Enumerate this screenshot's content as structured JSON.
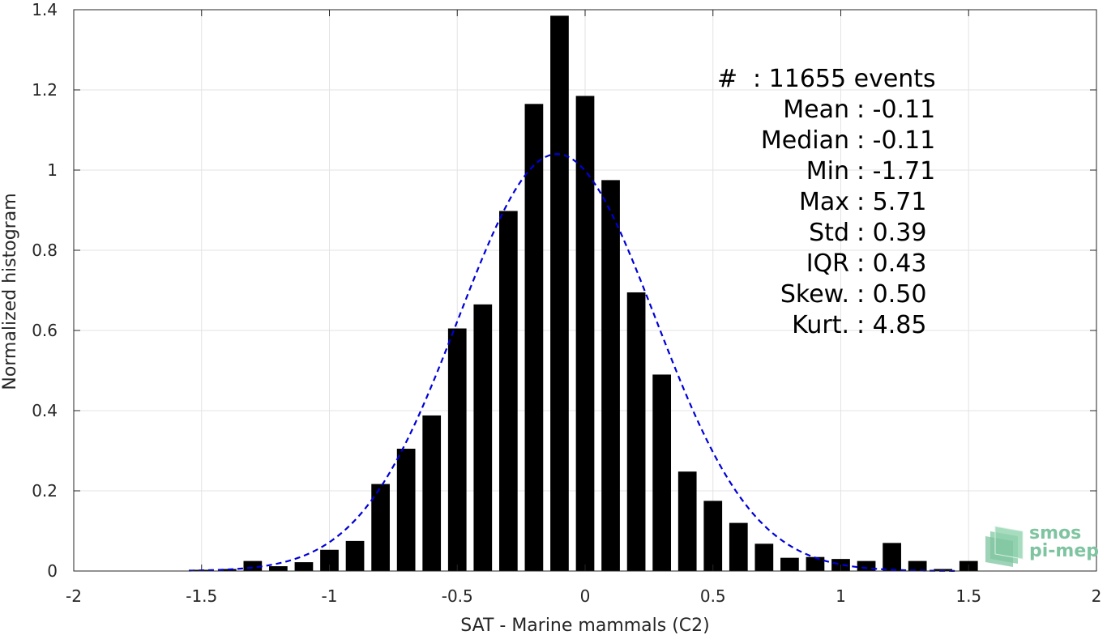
{
  "chart_data": {
    "type": "bar",
    "xlabel": "SAT - Marine mammals (C2)",
    "ylabel": "Normalized histogram",
    "xlim": [
      -2,
      2
    ],
    "ylim": [
      0,
      1.4
    ],
    "xticks": [
      -2,
      -1.5,
      -1,
      -0.5,
      0,
      0.5,
      1,
      1.5,
      2
    ],
    "xtick_labels": [
      "-2",
      "-1.5",
      "-1",
      "-0.5",
      "0",
      "0.5",
      "1",
      "1.5",
      "2"
    ],
    "yticks": [
      0,
      0.2,
      0.4,
      0.6,
      0.8,
      1,
      1.2,
      1.4
    ],
    "ytick_labels": [
      "0",
      "0.2",
      "0.4",
      "0.6",
      "0.8",
      "1",
      "1.2",
      "1.4"
    ],
    "grid": true,
    "bin_width": 0.1,
    "bars": {
      "x": [
        -1.5,
        -1.4,
        -1.3,
        -1.2,
        -1.1,
        -1.0,
        -0.9,
        -0.8,
        -0.7,
        -0.6,
        -0.5,
        -0.4,
        -0.3,
        -0.2,
        -0.1,
        0.0,
        0.1,
        0.2,
        0.3,
        0.4,
        0.5,
        0.6,
        0.7,
        0.8,
        0.9,
        1.0,
        1.1,
        1.2,
        1.3,
        1.4,
        1.5
      ],
      "values": [
        0.003,
        0.005,
        0.025,
        0.012,
        0.022,
        0.053,
        0.075,
        0.217,
        0.305,
        0.388,
        0.605,
        0.665,
        0.898,
        1.165,
        1.385,
        1.185,
        0.975,
        0.695,
        0.49,
        0.248,
        0.175,
        0.12,
        0.068,
        0.033,
        0.035,
        0.03,
        0.025,
        0.07,
        0.025,
        0.005,
        0.025
      ],
      "color": "#000000"
    },
    "fit": {
      "type": "gaussian",
      "mean": -0.11,
      "std": 0.385,
      "peak": 1.04,
      "x_range": [
        -1.55,
        1.45
      ],
      "color": "#0000d8",
      "style": "dashed"
    },
    "stats_box": {
      "placement": "top-right",
      "lines": [
        {
          "label": "#",
          "value": ": 11655 events"
        },
        {
          "label": "Mean",
          "value": ": -0.11"
        },
        {
          "label": "Median",
          "value": ": -0.11"
        },
        {
          "label": "Min",
          "value": ": -1.71"
        },
        {
          "label": "Max",
          "value": ": 5.71"
        },
        {
          "label": "Std",
          "value": ": 0.39"
        },
        {
          "label": "IQR",
          "value": ": 0.43"
        },
        {
          "label": "Skew.",
          "value": ": 0.50"
        },
        {
          "label": "Kurt.",
          "value": ": 4.85"
        }
      ]
    }
  },
  "logo": {
    "line1": "smos",
    "line2": "pi-mep",
    "color": "#7fc4a0"
  }
}
